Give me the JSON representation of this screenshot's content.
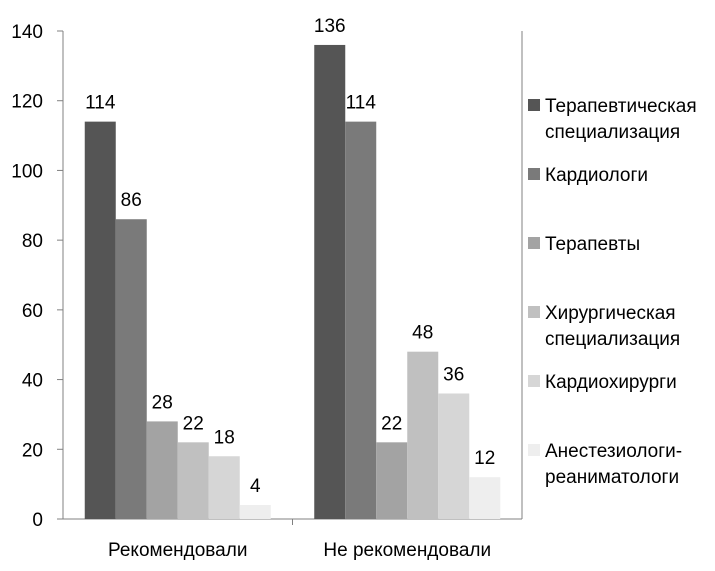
{
  "chart_data": {
    "type": "bar",
    "categories": [
      "Рекомендовали",
      "Не рекомендовали"
    ],
    "series": [
      {
        "name": "Терапевтическая специализация",
        "name_lines": [
          "Терапевтическая",
          "специализация"
        ],
        "values": [
          114,
          136
        ],
        "color": "#555555"
      },
      {
        "name": "Кардиологи",
        "name_lines": [
          "Кардиологи"
        ],
        "values": [
          86,
          114
        ],
        "color": "#7a7a7a"
      },
      {
        "name": "Терапевты",
        "name_lines": [
          "Терапевты"
        ],
        "values": [
          28,
          22
        ],
        "color": "#a3a3a3"
      },
      {
        "name": "Хирургическая специализация",
        "name_lines": [
          "Хирургическая",
          "специализация"
        ],
        "values": [
          22,
          48
        ],
        "color": "#c0c0c0"
      },
      {
        "name": "Кардиохирурги",
        "name_lines": [
          "Кардиохирурги"
        ],
        "values": [
          18,
          36
        ],
        "color": "#d6d6d6"
      },
      {
        "name": "Анестезиологи-реаниматологи",
        "name_lines": [
          "Анестезиологи-",
          "реаниматологи"
        ],
        "values": [
          4,
          12
        ],
        "color": "#eeeeee"
      }
    ],
    "ylim": [
      0,
      140
    ],
    "yticks": [
      0,
      20,
      40,
      60,
      80,
      100,
      120,
      140
    ],
    "grid": false,
    "legend": "right",
    "data_labels": true,
    "title": "",
    "xlabel": "",
    "ylabel": ""
  }
}
